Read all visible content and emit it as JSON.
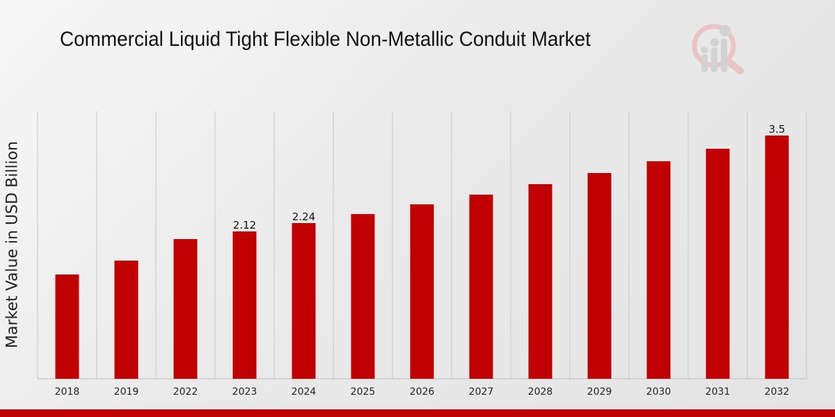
{
  "chart_data": {
    "type": "bar",
    "title": "Commercial Liquid Tight Flexible Non-Metallic Conduit Market",
    "xlabel": "",
    "ylabel": "Market Value in USD Billion",
    "categories": [
      "2018",
      "2019",
      "2022",
      "2023",
      "2024",
      "2025",
      "2026",
      "2027",
      "2028",
      "2029",
      "2030",
      "2031",
      "2032"
    ],
    "values": [
      1.5,
      1.7,
      2.01,
      2.12,
      2.24,
      2.37,
      2.51,
      2.65,
      2.8,
      2.96,
      3.13,
      3.31,
      3.5
    ],
    "data_labels": {
      "2023": "2.12",
      "2024": "2.24",
      "2032": "3.5"
    },
    "ylim": [
      0,
      3.85
    ],
    "grid": "vertical",
    "bar_color": "#c00000"
  }
}
